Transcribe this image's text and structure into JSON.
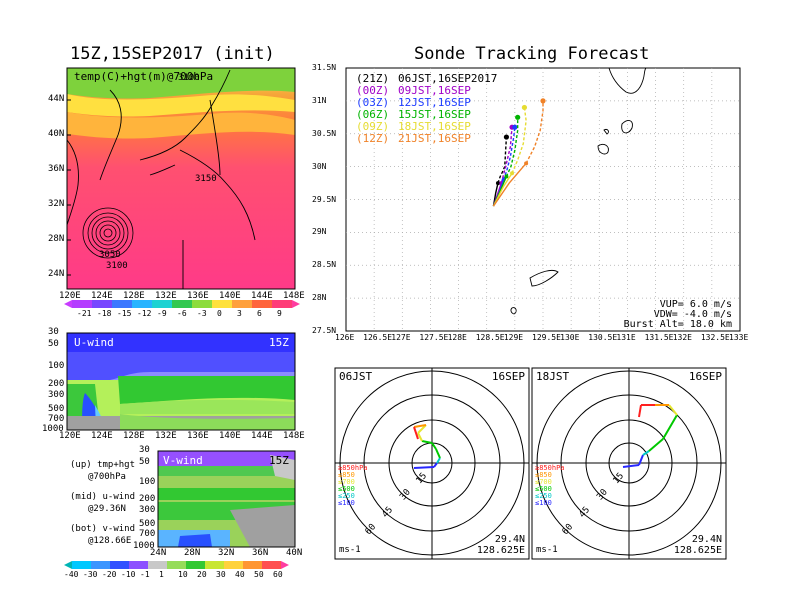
{
  "left_title": "15Z,15SEP2017 (init)",
  "right_title": "Sonde Tracking Forecast",
  "map700": {
    "label": "temp(C)+hgt(m)@700hPa",
    "lat_ticks": [
      "44N",
      "40N",
      "36N",
      "32N",
      "28N",
      "24N"
    ],
    "lon_ticks": [
      "120E",
      "124E",
      "128E",
      "132E",
      "136E",
      "140E",
      "144E",
      "148E"
    ],
    "contours": [
      "3100",
      "3150",
      "3050",
      "3100"
    ],
    "colorbar": [
      "-21",
      "-18",
      "-15",
      "-12",
      "-9",
      "-6",
      "-3",
      "0",
      "3",
      "6",
      "9"
    ]
  },
  "uwind": {
    "label": "U-wind",
    "time": "15Z",
    "p_ticks": [
      "30",
      "50",
      "100",
      "200",
      "300",
      "500",
      "700",
      "1000"
    ],
    "lon_ticks": [
      "120E",
      "124E",
      "128E",
      "132E",
      "136E",
      "140E",
      "144E",
      "148E"
    ]
  },
  "vwind": {
    "label": "V-wind",
    "time": "15Z",
    "p_ticks": [
      "30",
      "50",
      "100",
      "200",
      "300",
      "500",
      "700",
      "1000"
    ],
    "lat_ticks": [
      "24N",
      "28N",
      "32N",
      "36N",
      "40N"
    ],
    "colorbar": [
      "-40",
      "-30",
      "-20",
      "-10",
      "-1",
      "1",
      "10",
      "20",
      "30",
      "40",
      "50",
      "60"
    ]
  },
  "legend_notes": {
    "up1": "(up) tmp+hgt",
    "up2": "@700hPa",
    "mid1": "(mid) u-wind",
    "mid2": "@29.36N",
    "bot1": "(bot) v-wind",
    "bot2": "@128.66E"
  },
  "track_map": {
    "lat_ticks": [
      "31.5N",
      "31N",
      "30.5N",
      "30N",
      "29.5N",
      "29N",
      "28.5N",
      "28N",
      "27.5N"
    ],
    "lon_ticks": [
      "126E",
      "126.5E",
      "127E",
      "127.5E",
      "128E",
      "128.5E",
      "129E",
      "129.5E",
      "130E",
      "130.5E",
      "131E",
      "131.5E",
      "132E",
      "132.5E",
      "133E"
    ],
    "launch_times": [
      {
        "z": "(21Z)",
        "jst": "06JST,16SEP2017",
        "color": "#000000"
      },
      {
        "z": "(00Z)",
        "jst": "09JST,16SEP",
        "color": "#a000c8"
      },
      {
        "z": "(03Z)",
        "jst": "12JST,16SEP",
        "color": "#1e3cff"
      },
      {
        "z": "(06Z)",
        "jst": "15JST,16SEP",
        "color": "#00b400"
      },
      {
        "z": "(09Z)",
        "jst": "18JST,16SEP",
        "color": "#e6dc32"
      },
      {
        "z": "(12Z)",
        "jst": "21JST,16SEP",
        "color": "#f08228"
      }
    ],
    "params": {
      "vup": "VUP= 6.0 m/s",
      "vdw": "VDW= -4.0 m/s",
      "burst": "Burst Alt= 18.0 km"
    }
  },
  "hodo_left": {
    "time": "06JST",
    "date": "16SEP",
    "lat": "29.4N",
    "lon": "128.625E",
    "unit": "ms-1",
    "ring_labels": [
      "15",
      "30",
      "45",
      "60"
    ],
    "levels": [
      {
        "label": "≥850hPa",
        "color": "#ff2020"
      },
      {
        "label": "≤850",
        "color": "#ff9600"
      },
      {
        "label": "≤700",
        "color": "#e6e632"
      },
      {
        "label": "≤500",
        "color": "#00c800"
      },
      {
        "label": "≤250",
        "color": "#00c8c8"
      },
      {
        "label": "≤100",
        "color": "#2828ff"
      }
    ]
  },
  "hodo_right": {
    "time": "18JST",
    "date": "16SEP",
    "lat": "29.4N",
    "lon": "128.625E",
    "unit": "ms-1",
    "ring_labels": [
      "15",
      "30",
      "45",
      "60"
    ],
    "levels": [
      {
        "label": "≥850hPa",
        "color": "#ff2020"
      },
      {
        "label": "≤850",
        "color": "#ff9600"
      },
      {
        "label": "≤700",
        "color": "#e6e632"
      },
      {
        "label": "≤500",
        "color": "#00c800"
      },
      {
        "label": "≤250",
        "color": "#00c8c8"
      },
      {
        "label": "≤100",
        "color": "#2828ff"
      }
    ]
  },
  "chart_data": {
    "type": "line",
    "title": "Sonde Tracking Forecast",
    "xlabel": "",
    "ylabel": "",
    "xlim": [
      126,
      133
    ],
    "ylim": [
      27.5,
      31.5
    ],
    "series": [
      {
        "name": "(21Z) 06JST,16SEP2017",
        "color": "#000000",
        "x": [
          128.62,
          128.66,
          128.7,
          128.74,
          128.78,
          128.82,
          128.85
        ],
        "y": [
          29.4,
          29.6,
          29.75,
          29.85,
          29.92,
          30.0,
          30.45
        ]
      },
      {
        "name": "(00Z) 09JST,16SEP",
        "color": "#a000c8",
        "x": [
          128.62,
          128.7,
          128.76,
          128.8,
          128.85,
          128.92,
          128.95
        ],
        "y": [
          29.4,
          29.6,
          29.75,
          29.88,
          30.05,
          30.3,
          30.6
        ]
      },
      {
        "name": "(03Z) 12JST,16SEP",
        "color": "#1e3cff",
        "x": [
          128.62,
          128.72,
          128.8,
          128.86,
          128.92,
          128.98,
          129.0
        ],
        "y": [
          29.4,
          29.6,
          29.8,
          29.95,
          30.15,
          30.45,
          30.6
        ]
      },
      {
        "name": "(06Z) 15JST,16SEP",
        "color": "#00b400",
        "x": [
          128.62,
          128.75,
          128.85,
          128.93,
          129.0,
          129.05,
          129.05
        ],
        "y": [
          29.4,
          29.65,
          29.85,
          30.0,
          30.25,
          30.55,
          30.75
        ]
      },
      {
        "name": "(09Z) 18JST,16SEP",
        "color": "#e6dc32",
        "x": [
          128.62,
          128.8,
          128.95,
          129.05,
          129.15,
          129.2,
          129.17
        ],
        "y": [
          29.4,
          29.7,
          29.9,
          30.1,
          30.35,
          30.7,
          30.9
        ]
      },
      {
        "name": "(12Z) 21JST,16SEP",
        "color": "#f08228",
        "x": [
          128.62,
          128.9,
          129.2,
          129.35,
          129.45,
          129.5,
          129.5
        ],
        "y": [
          29.4,
          29.75,
          30.05,
          30.3,
          30.55,
          30.85,
          31.0
        ]
      }
    ]
  }
}
